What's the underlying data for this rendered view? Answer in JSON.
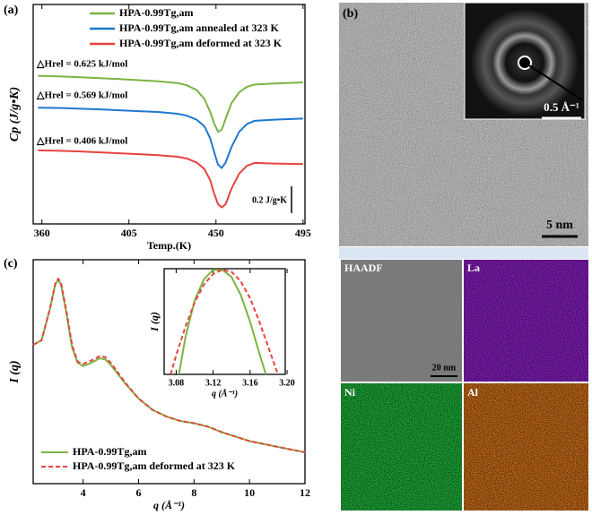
{
  "chart_data": [
    {
      "type": "line",
      "panel_label": "(a)",
      "xlabel": "Temp.(K)",
      "ylabel": "Cp (J/g•K)",
      "xlim": [
        355.5,
        496
      ],
      "ylim": [
        0,
        100
      ],
      "xticks": [
        360,
        405,
        450,
        495
      ],
      "x": [
        358,
        370,
        380,
        390,
        400,
        410,
        420,
        430,
        435,
        440,
        444,
        447,
        449,
        451,
        453,
        455,
        458,
        462,
        466,
        470,
        480,
        495
      ],
      "series": [
        {
          "name": "HPA-0.99Tg,am",
          "color": "#7cb342",
          "values": [
            67.5,
            67.2,
            66.8,
            66.4,
            66,
            65.5,
            65,
            64.2,
            63.2,
            61,
            57,
            51,
            46,
            42,
            43,
            48,
            55,
            60,
            62.5,
            63.5,
            64,
            64.5
          ]
        },
        {
          "name": "HPA-0.99Tg,am annealed at 323 K",
          "color": "#1e78d0",
          "values": [
            53,
            52.8,
            52.5,
            52.2,
            51.8,
            51.4,
            51,
            50.2,
            49.3,
            47.5,
            44.5,
            39,
            33,
            27,
            25.5,
            28,
            35,
            42,
            45.5,
            47,
            47.5,
            48
          ]
        },
        {
          "name": "HPA-0.99Tg,am deformed at 323 K",
          "color": "#e8423f",
          "values": [
            33.5,
            33.3,
            33,
            32.6,
            32.2,
            31.8,
            31.3,
            30.6,
            29.8,
            28,
            25,
            20,
            14,
            9,
            7.5,
            9,
            16,
            23,
            26.5,
            27.8,
            27.5,
            27.3
          ]
        }
      ],
      "annotations": [
        "△Hrel = 0.625 kJ/mol",
        "△Hrel = 0.569 kJ/mol",
        "△Hrel = 0.406 kJ/mol"
      ],
      "scale_bar": "0.2 J/g•K"
    },
    {
      "type": "line",
      "panel_label": "(c)",
      "xlabel": "q (Å⁻¹)",
      "ylabel": "I (q)",
      "xlim": [
        2.2,
        12
      ],
      "ylim": [
        0,
        100
      ],
      "xticks": [
        4,
        6,
        8,
        10,
        12
      ],
      "x": [
        2.2,
        2.5,
        2.8,
        3.0,
        3.1,
        3.2,
        3.4,
        3.6,
        3.8,
        4.0,
        4.3,
        4.6,
        4.8,
        5.0,
        5.5,
        6,
        6.5,
        7,
        7.5,
        8,
        8.5,
        9,
        10,
        11,
        12
      ],
      "series": [
        {
          "name": "HPA-0.99Tg,am",
          "color": "#7cb342",
          "dashed": false,
          "values": [
            62,
            64,
            78,
            89,
            91,
            89,
            76,
            61,
            54,
            52.5,
            54,
            56,
            55.5,
            53,
            45,
            38,
            33,
            30,
            28,
            27,
            25.5,
            23,
            19,
            16.5,
            14
          ]
        },
        {
          "name": "HPA-0.99Tg,am deformed at 323 K",
          "color": "#e8423f",
          "dashed": true,
          "values": [
            62,
            64,
            78,
            89.5,
            91.5,
            90,
            77,
            62,
            54.5,
            53.5,
            55,
            57,
            56.5,
            54,
            45.5,
            38,
            33,
            30,
            28,
            27,
            25.5,
            23,
            19,
            16.5,
            14
          ]
        }
      ],
      "inset": {
        "xlabel": "q (Å⁻¹)",
        "ylabel": "I (q)",
        "xlim": [
          3.067,
          3.198
        ],
        "ylim": [
          0,
          100
        ],
        "xticks": [
          3.08,
          3.12,
          3.16,
          {
            "value": 3.2,
            "label": "3.20"
          }
        ],
        "series": [
          {
            "color": "#7cb342",
            "dashed": false,
            "x": [
              3.083,
              3.09,
              3.1,
              3.11,
              3.12,
              3.13,
              3.14,
              3.15,
              3.16,
              3.17,
              3.177
            ],
            "values": [
              0,
              35,
              70,
              90,
              99,
              99,
              92,
              75,
              50,
              20,
              0
            ]
          },
          {
            "color": "#e8423f",
            "dashed": true,
            "x": [
              3.074,
              3.08,
              3.09,
              3.1,
              3.11,
              3.12,
              3.13,
              3.14,
              3.15,
              3.16,
              3.17,
              3.18,
              3.19
            ],
            "values": [
              0,
              18,
              45,
              68,
              85,
              95,
              99,
              97,
              88,
              72,
              50,
              25,
              0
            ]
          }
        ]
      }
    }
  ],
  "panel_b": {
    "label": "(b)",
    "diffraction_scale": "0.5 Å⁻¹",
    "tem_scale": "5 nm",
    "maps": [
      "HAADF",
      "La",
      "Ni",
      "Al"
    ],
    "map_scale": "20 nm"
  }
}
